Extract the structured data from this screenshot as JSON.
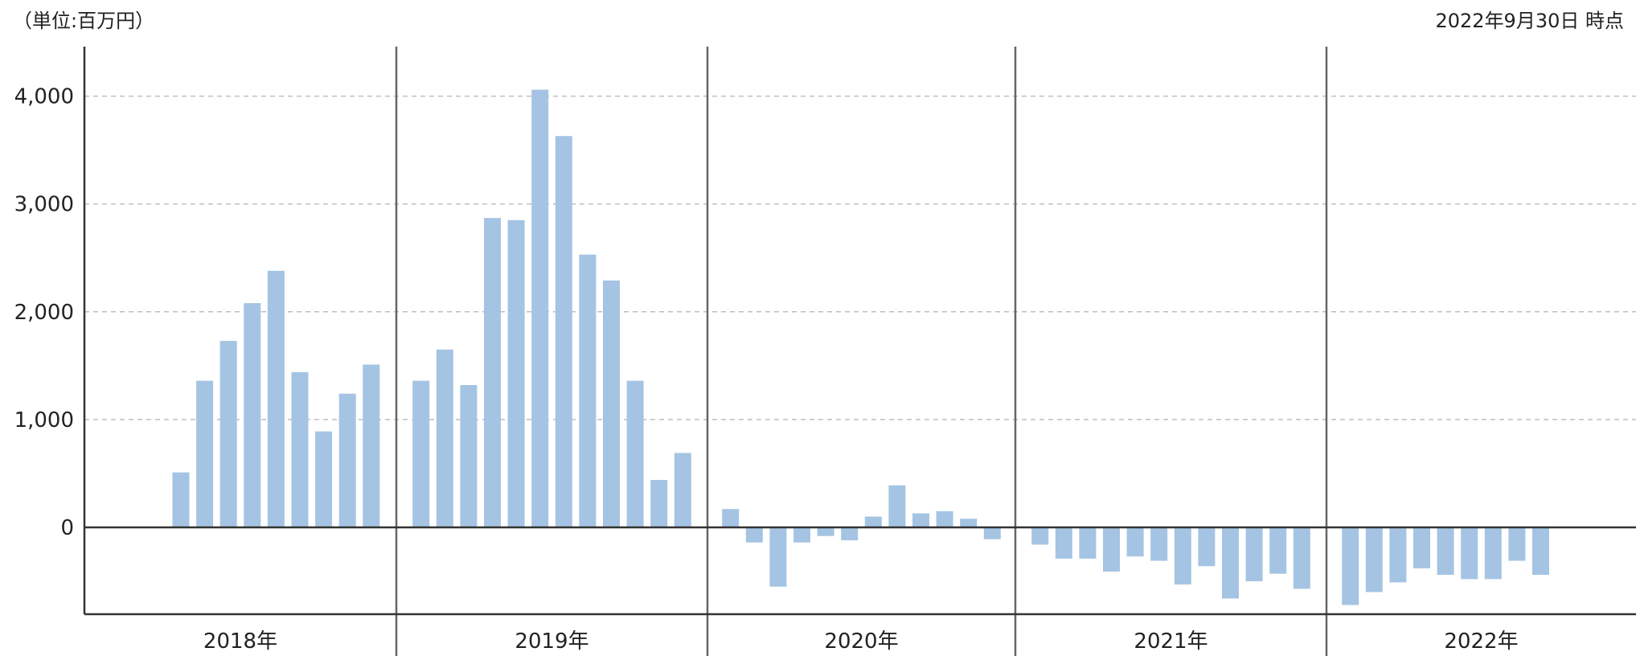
{
  "header": {
    "unit_label": "（単位:百万円）",
    "as_of_label": "2022年9月30日 時点"
  },
  "chart_data": {
    "type": "bar",
    "title": "",
    "xlabel": "",
    "ylabel": "",
    "ylim": [
      -800,
      4300
    ],
    "yticks": [
      0,
      1000,
      2000,
      3000,
      4000
    ],
    "ytick_labels": [
      "0",
      "1,000",
      "2,000",
      "3,000",
      "4,000"
    ],
    "grid": true,
    "colors": {
      "bar": "#a5c4e3",
      "axis": "#333333",
      "grid": "#bfbfbf",
      "divider": "#666666"
    },
    "groups": [
      {
        "label": "2018年",
        "slots": 12,
        "start_slot": 3,
        "values": [
          510,
          1360,
          1730,
          2080,
          2380,
          1440,
          890,
          1240,
          1510
        ]
      },
      {
        "label": "2019年",
        "slots": 12,
        "start_slot": 0,
        "values": [
          1360,
          1650,
          1320,
          2870,
          2850,
          4060,
          3630,
          2530,
          2290,
          1360,
          440,
          690
        ]
      },
      {
        "label": "2020年",
        "slots": 12,
        "start_slot": 0,
        "values": [
          170,
          -140,
          -550,
          -140,
          -80,
          -120,
          100,
          390,
          130,
          150,
          80,
          -110
        ]
      },
      {
        "label": "2021年",
        "slots": 12,
        "start_slot": 0,
        "values": [
          -160,
          -290,
          -290,
          -410,
          -270,
          -310,
          -530,
          -360,
          -660,
          -500,
          -430,
          -570
        ]
      },
      {
        "label": "2022年",
        "slots": 12,
        "start_slot": 0,
        "values": [
          -720,
          -600,
          -510,
          -380,
          -440,
          -480,
          -480,
          -310,
          -440
        ]
      }
    ]
  }
}
